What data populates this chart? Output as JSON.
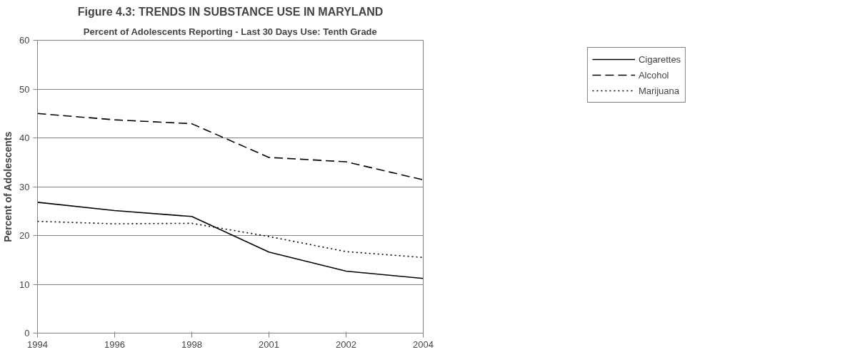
{
  "chart_data": {
    "type": "line",
    "title": "Figure 4.3: TRENDS IN SUBSTANCE USE IN MARYLAND",
    "subtitle": "Percent of Adolescents Reporting - Last 30 Days Use: Tenth Grade",
    "ylabel": "Percent of Adolescents",
    "categories": [
      "1994",
      "1996",
      "1998",
      "2001",
      "2002",
      "2004"
    ],
    "series": [
      {
        "name": "Cigarettes",
        "color": "#000000",
        "line_style": "solid",
        "values": [
          26.8,
          25.1,
          23.9,
          16.6,
          12.7,
          11.2
        ]
      },
      {
        "name": "Alcohol",
        "color": "#000000",
        "line_style": "dashed",
        "values": [
          45,
          43.7,
          42.9,
          36,
          35.1,
          31.4
        ]
      },
      {
        "name": "Marijuana",
        "color": "#000000",
        "line_style": "dotted",
        "values": [
          22.9,
          22.4,
          22.5,
          19.8,
          16.7,
          15.5
        ]
      }
    ],
    "ylim": [
      0,
      60
    ],
    "yticks": [
      0,
      10,
      20,
      30,
      40,
      50,
      60
    ],
    "grid": "y",
    "legend": "right",
    "marker": "none"
  }
}
